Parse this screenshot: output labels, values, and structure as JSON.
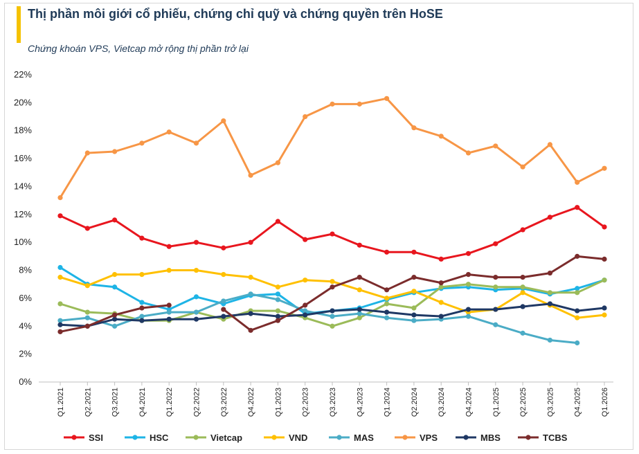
{
  "header": {
    "title": "Thị phần môi giới cổ phiếu, chứng chỉ quỹ và chứng quyền trên HoSE",
    "subtitle": "Chứng khoán VPS, Vietcap mở rộng thị phần trở lại",
    "accent_color": "#f5c200"
  },
  "chart_data": {
    "type": "line",
    "title": "Thị phần môi giới cổ phiếu, chứng chỉ quỹ và chứng quyền trên HoSE",
    "subtitle": "Chứng khoán VPS, Vietcap mở rộng thị phần trở lại",
    "xlabel": "",
    "ylabel": "",
    "ylim": [
      0,
      22
    ],
    "y_unit": "%",
    "y_ticks": [
      "0%",
      "2%",
      "4%",
      "6%",
      "8%",
      "10%",
      "12%",
      "14%",
      "16%",
      "18%",
      "20%",
      "22%"
    ],
    "grid": false,
    "legend_position": "bottom",
    "categories": [
      "Q1.2021",
      "Q2.2021",
      "Q3.2021",
      "Q4.2021",
      "Q1.2022",
      "Q2.2022",
      "Q3.2022",
      "Q4.2022",
      "Q1.2023",
      "Q2.2023",
      "Q3.2023",
      "Q4.2023",
      "Q1.2024",
      "Q2.2024",
      "Q3.2024",
      "Q4.2024",
      "Q1.2025",
      "Q2.2025",
      "Q3.2025",
      "Q4.2025",
      "Q1.2026"
    ],
    "series": [
      {
        "name": "SSI",
        "color": "#e8161e",
        "values": [
          11.9,
          11.0,
          11.6,
          10.3,
          9.7,
          10.0,
          9.6,
          10.0,
          11.5,
          10.2,
          10.6,
          9.8,
          9.3,
          9.3,
          8.8,
          9.2,
          9.9,
          10.9,
          11.8,
          12.5,
          11.1
        ]
      },
      {
        "name": "HSC",
        "color": "#1eb4e6",
        "values": [
          8.2,
          7.0,
          6.8,
          5.7,
          5.2,
          6.1,
          5.6,
          6.2,
          6.3,
          4.9,
          5.1,
          5.3,
          5.9,
          6.4,
          6.7,
          6.8,
          6.6,
          6.7,
          6.3,
          6.7,
          7.3
        ]
      },
      {
        "name": "Vietcap",
        "color": "#9bbb59",
        "values": [
          5.6,
          5.0,
          4.9,
          4.4,
          4.4,
          5.0,
          4.5,
          5.1,
          5.1,
          4.6,
          4.0,
          4.6,
          5.6,
          5.3,
          6.8,
          7.0,
          6.8,
          6.8,
          6.4,
          6.4,
          7.3
        ]
      },
      {
        "name": "VND",
        "color": "#ffc000",
        "values": [
          7.5,
          6.9,
          7.7,
          7.7,
          8.0,
          8.0,
          7.7,
          7.5,
          6.8,
          7.3,
          7.2,
          6.6,
          6.0,
          6.5,
          5.7,
          5.0,
          5.2,
          6.4,
          5.5,
          4.6,
          4.8
        ]
      },
      {
        "name": "MAS",
        "color": "#4bacc6",
        "values": [
          4.4,
          4.6,
          4.0,
          4.7,
          5.0,
          5.0,
          5.8,
          6.3,
          5.9,
          5.1,
          4.7,
          4.9,
          4.6,
          4.4,
          4.5,
          4.7,
          4.1,
          3.5,
          3.0,
          2.8,
          null
        ]
      },
      {
        "name": "VPS",
        "color": "#f79646",
        "values": [
          13.2,
          16.4,
          16.5,
          17.1,
          17.9,
          17.1,
          18.7,
          14.8,
          15.7,
          19.0,
          19.9,
          19.9,
          20.3,
          18.2,
          17.6,
          16.4,
          16.9,
          15.4,
          17.0,
          14.3,
          15.3
        ]
      },
      {
        "name": "MBS",
        "color": "#1f3864",
        "values": [
          4.1,
          4.0,
          4.5,
          4.4,
          4.5,
          4.5,
          4.7,
          4.9,
          4.7,
          4.8,
          5.1,
          5.2,
          5.0,
          4.8,
          4.7,
          5.2,
          5.2,
          5.4,
          5.6,
          5.1,
          5.3
        ]
      },
      {
        "name": "TCBS",
        "color": "#7b2c2c",
        "values": [
          3.6,
          4.0,
          4.8,
          5.3,
          5.5,
          null,
          5.2,
          3.7,
          4.4,
          5.5,
          6.8,
          7.5,
          6.6,
          7.5,
          7.1,
          7.7,
          7.5,
          7.5,
          7.8,
          9.0,
          8.8
        ]
      }
    ]
  }
}
